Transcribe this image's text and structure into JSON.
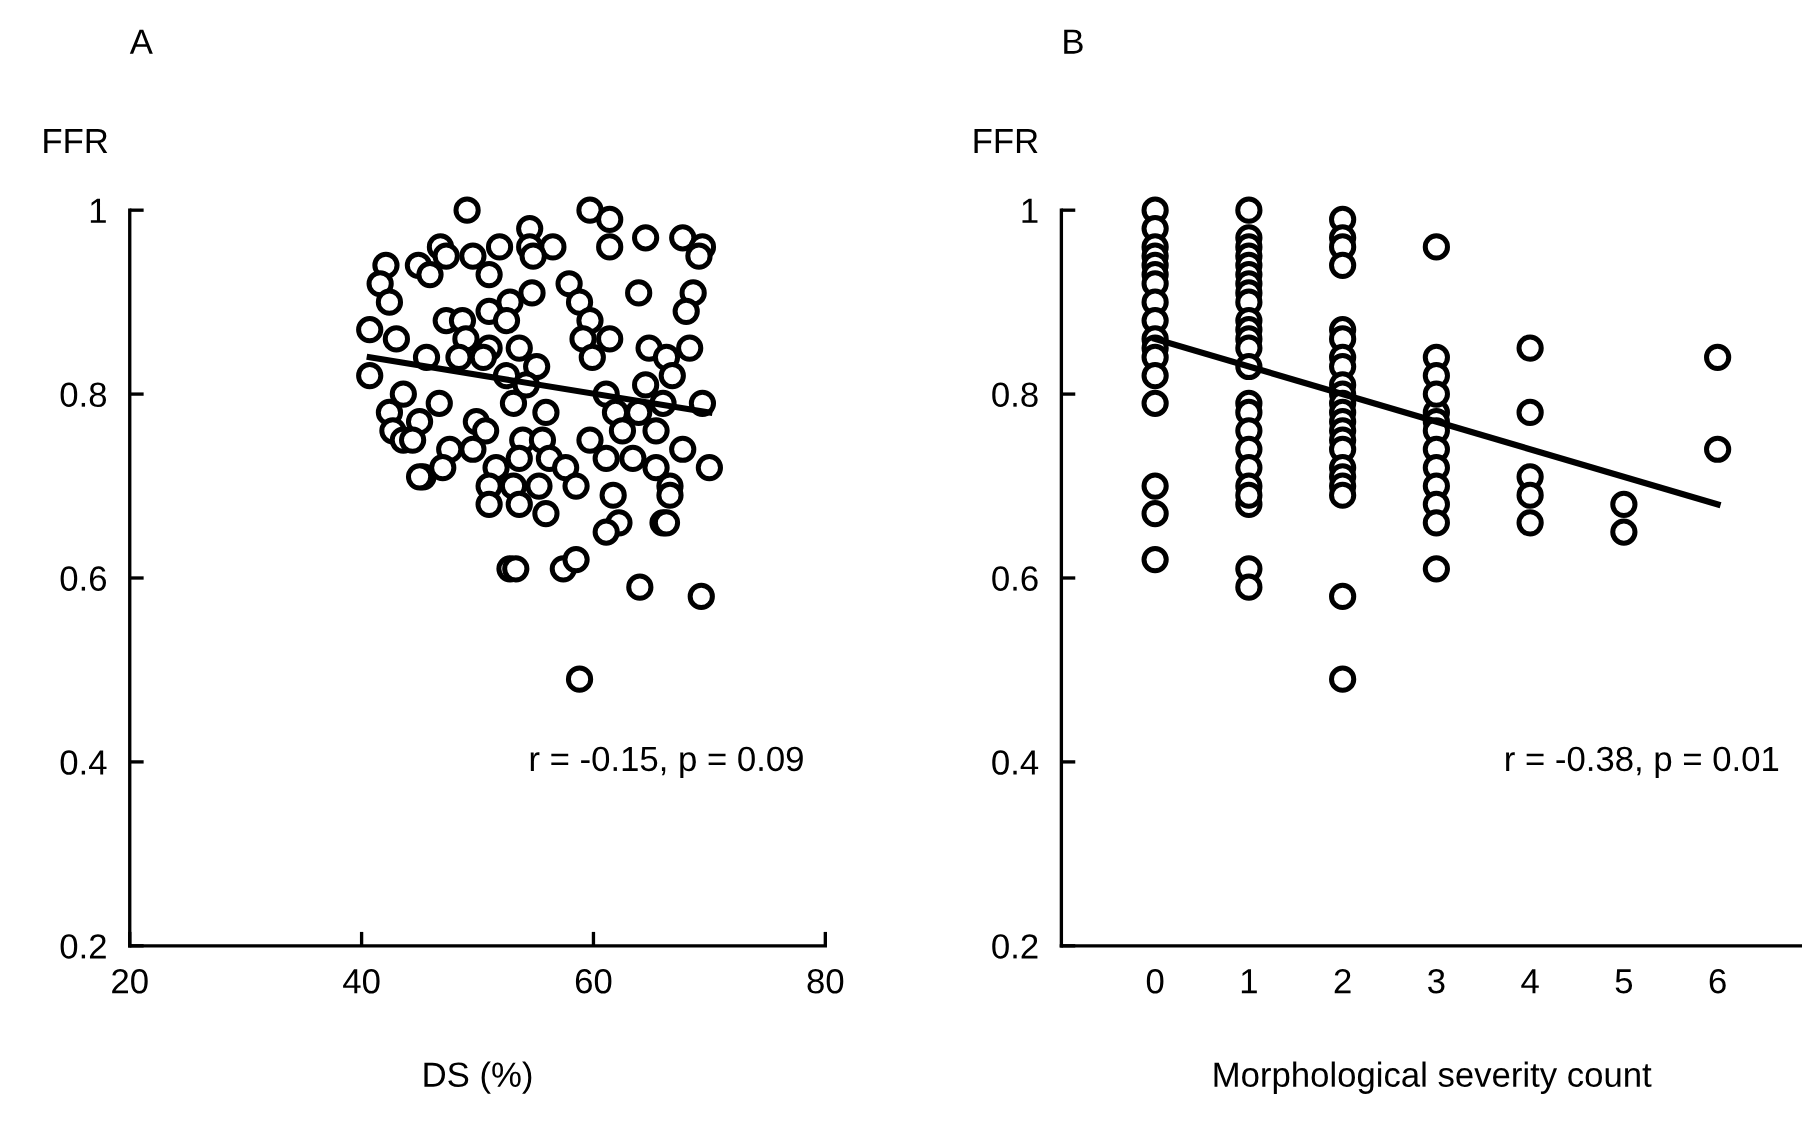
{
  "chart_data": [
    {
      "type": "scatter",
      "title": "A",
      "ylabel": "FFR",
      "xlabel": "DS (%)",
      "annotations": [
        "r = -0.15, p = 0.09"
      ],
      "xlim": [
        20,
        80
      ],
      "ylim": [
        0.2,
        1
      ],
      "xticks": [
        20,
        40,
        60,
        80
      ],
      "yticks": [
        0.2,
        0.4,
        0.6,
        0.8,
        1
      ],
      "series": [
        {
          "type": "scatter",
          "marker": "circle",
          "color": "#000000",
          "x": [
            49.1,
            59.7,
            61.4,
            54.5,
            46.8,
            51.9,
            56.5,
            61.4,
            64.5,
            67.7,
            69.4,
            42.1,
            44.9,
            49.6,
            54.5,
            54.8,
            69.1,
            47.3,
            41.6,
            45.9,
            51.0,
            57.9,
            63.9,
            68.6,
            42.4,
            54.7,
            52.8,
            58.8,
            68.0,
            51.0,
            40.7,
            47.3,
            48.7,
            52.5,
            59.7,
            43.0,
            49.0,
            51.0,
            53.6,
            59.1,
            61.4,
            64.8,
            68.3,
            45.6,
            48.4,
            50.5,
            55.1,
            59.9,
            66.3,
            40.7,
            52.5,
            66.8,
            54.2,
            64.5,
            43.6,
            46.7,
            61.1,
            69.4,
            53.1,
            42.4,
            49.9,
            55.9,
            61.9,
            63.9,
            66.0,
            42.7,
            45.0,
            50.7,
            59.7,
            62.5,
            65.4,
            43.6,
            47.6,
            49.6,
            53.9,
            55.6,
            67.7,
            70.0,
            45.3,
            47.0,
            51.6,
            53.6,
            56.2,
            57.6,
            61.1,
            63.4,
            65.4,
            51.0,
            53.1,
            55.3,
            58.5,
            61.7,
            66.6,
            51.0,
            53.6,
            55.9,
            62.2,
            66.0,
            66.6,
            66.3,
            61.1,
            52.8,
            53.3,
            57.4,
            58.5,
            64.0,
            69.3,
            58.8,
            44.4,
            45.0
          ],
          "values": [
            1.0,
            1.0,
            0.99,
            0.98,
            0.96,
            0.96,
            0.96,
            0.96,
            0.97,
            0.97,
            0.96,
            0.94,
            0.94,
            0.95,
            0.96,
            0.95,
            0.95,
            0.95,
            0.92,
            0.93,
            0.93,
            0.92,
            0.91,
            0.91,
            0.9,
            0.91,
            0.9,
            0.9,
            0.89,
            0.89,
            0.87,
            0.88,
            0.88,
            0.88,
            0.88,
            0.86,
            0.86,
            0.85,
            0.85,
            0.86,
            0.86,
            0.85,
            0.85,
            0.84,
            0.84,
            0.84,
            0.83,
            0.84,
            0.84,
            0.82,
            0.82,
            0.82,
            0.81,
            0.81,
            0.8,
            0.79,
            0.8,
            0.79,
            0.79,
            0.78,
            0.77,
            0.78,
            0.78,
            0.78,
            0.79,
            0.76,
            0.77,
            0.76,
            0.75,
            0.76,
            0.76,
            0.75,
            0.74,
            0.74,
            0.75,
            0.75,
            0.74,
            0.72,
            0.71,
            0.72,
            0.72,
            0.73,
            0.73,
            0.72,
            0.73,
            0.73,
            0.72,
            0.7,
            0.7,
            0.7,
            0.7,
            0.69,
            0.7,
            0.68,
            0.68,
            0.67,
            0.66,
            0.66,
            0.69,
            0.66,
            0.65,
            0.61,
            0.61,
            0.61,
            0.62,
            0.59,
            0.58,
            0.49,
            0.75,
            0.71
          ]
        },
        {
          "type": "line",
          "color": "#000000",
          "x": [
            40.7,
            70.0
          ],
          "values": [
            0.84,
            0.78
          ]
        }
      ]
    },
    {
      "type": "scatter",
      "title": "B",
      "ylabel": "FFR",
      "xlabel": "Morphological severity count",
      "annotations": [
        "r = -0.38, p = 0.01"
      ],
      "xlim": [
        -1,
        6.9
      ],
      "ylim": [
        0.2,
        1
      ],
      "xticks": [
        0,
        1,
        2,
        3,
        4,
        5,
        6
      ],
      "yticks": [
        0.2,
        0.4,
        0.6,
        0.8,
        1
      ],
      "series": [
        {
          "type": "scatter",
          "marker": "circle",
          "color": "#000000",
          "x": [
            0,
            0,
            0,
            0,
            0,
            0,
            0,
            0,
            0,
            0,
            0,
            0,
            0,
            0,
            0,
            0,
            0,
            1,
            1,
            1,
            1,
            1,
            1,
            1,
            1,
            1,
            1,
            1,
            1,
            1,
            1,
            1,
            1,
            1,
            1,
            1,
            1,
            1,
            1,
            1,
            1,
            2,
            2,
            2,
            2,
            2,
            2,
            2,
            2,
            2,
            2,
            2,
            2,
            2,
            2,
            2,
            2,
            2,
            2,
            2,
            2,
            2,
            2,
            3,
            3,
            3,
            3,
            3,
            3,
            3,
            3,
            3,
            3,
            3,
            3,
            3,
            4,
            4,
            4,
            4,
            4,
            5,
            5,
            6,
            6
          ],
          "values": [
            1.0,
            0.98,
            0.96,
            0.95,
            0.94,
            0.93,
            0.92,
            0.9,
            0.88,
            0.86,
            0.85,
            0.84,
            0.82,
            0.79,
            0.7,
            0.67,
            0.62,
            1.0,
            0.97,
            0.96,
            0.95,
            0.94,
            0.93,
            0.92,
            0.91,
            0.9,
            0.88,
            0.87,
            0.86,
            0.85,
            0.83,
            0.79,
            0.78,
            0.76,
            0.74,
            0.72,
            0.7,
            0.68,
            0.69,
            0.61,
            0.59,
            0.99,
            0.97,
            0.96,
            0.94,
            0.87,
            0.86,
            0.84,
            0.83,
            0.81,
            0.8,
            0.79,
            0.78,
            0.77,
            0.76,
            0.75,
            0.74,
            0.72,
            0.71,
            0.7,
            0.69,
            0.58,
            0.49,
            0.96,
            0.84,
            0.82,
            0.78,
            0.77,
            0.76,
            0.74,
            0.72,
            0.7,
            0.68,
            0.66,
            0.61,
            0.8,
            0.85,
            0.78,
            0.71,
            0.69,
            0.66,
            0.68,
            0.65,
            0.84,
            0.74
          ]
        },
        {
          "type": "line",
          "color": "#000000",
          "x": [
            0,
            6
          ],
          "values": [
            0.86,
            0.68
          ]
        }
      ]
    }
  ]
}
